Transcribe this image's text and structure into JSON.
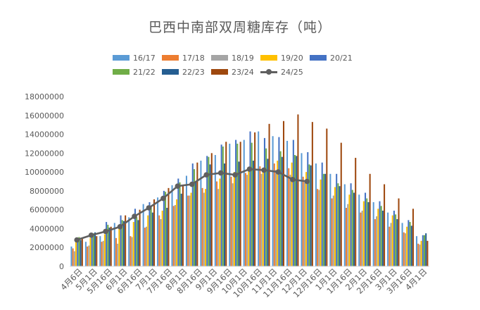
{
  "chart_data": {
    "type": "bar",
    "title": "巴西中南部双周糖库存（吨）",
    "categories": [
      "4月6日",
      "4月16日",
      "5月1日",
      "5月16日",
      "6月1日",
      "6月16日",
      "7月1日",
      "7月16日",
      "8月1日",
      "8月16日",
      "9月1日",
      "9月16日",
      "10月1日",
      "10月16日",
      "11月1日",
      "11月16日",
      "12月1日",
      "12月16日",
      "1月1日",
      "1月16日",
      "2月1日",
      "2月16日",
      "3月1日",
      "3月16日",
      "4月1日"
    ],
    "x_tick_labels": [
      "4月6日",
      "5月1日",
      "5月16日",
      "6月1日",
      "6月16日",
      "7月1日",
      "7月16日",
      "8月1日",
      "8月16日",
      "9月1日",
      "9月16日",
      "10月1日",
      "10月16日",
      "11月1日",
      "11月16日",
      "12月1日",
      "12月16日",
      "1月1日",
      "1月16日",
      "2月1日",
      "2月16日",
      "3月1日",
      "3月16日",
      "4月1日"
    ],
    "ylim": [
      0,
      18000000
    ],
    "yticks": [
      0,
      2000000,
      4000000,
      6000000,
      8000000,
      10000000,
      12000000,
      14000000,
      16000000,
      18000000
    ],
    "ytick_labels": [
      "0",
      "2000000",
      "4000000",
      "6000000",
      "8000000",
      "10000000",
      "12000000",
      "14000000",
      "16000000",
      "18000000"
    ],
    "grid": false,
    "legend_position": "top",
    "series": [
      {
        "name": "16/17",
        "kind": "bar",
        "color": "#5b9bd5",
        "values": [
          2100000,
          2600000,
          3200000,
          4600000,
          5200000,
          6600000,
          7300000,
          8600000,
          9600000,
          11200000,
          11800000,
          13000000,
          13400000,
          14300000,
          13800000,
          13300000,
          12000000,
          10900000,
          9800000,
          8700000,
          7600000,
          6800000,
          5700000,
          4600000,
          3200000
        ]
      },
      {
        "name": "17/18",
        "kind": "bar",
        "color": "#ed7d31",
        "values": [
          1900000,
          2100000,
          2600000,
          3000000,
          3200000,
          4100000,
          5400000,
          6400000,
          7500000,
          8300000,
          9000000,
          9500000,
          9900000,
          10600000,
          10900000,
          10400000,
          9500000,
          8200000,
          7200000,
          6200000,
          5700000,
          5000000,
          4200000,
          3600000,
          2400000
        ]
      },
      {
        "name": "18/19",
        "kind": "bar",
        "color": "#a5a5a5",
        "values": [
          1600000,
          2200000,
          2700000,
          2400000,
          3100000,
          4200000,
          5000000,
          6500000,
          7500000,
          7800000,
          8200000,
          8800000,
          9700000,
          9800000,
          10200000,
          9700000,
          8900000,
          8100000,
          7500000,
          6600000,
          5900000,
          5300000,
          4600000,
          3500000,
          2300000
        ]
      },
      {
        "name": "19/20",
        "kind": "bar",
        "color": "#ffc000",
        "values": [
          2700000,
          3000000,
          3400000,
          4000000,
          4700000,
          5400000,
          5900000,
          7100000,
          7800000,
          8200000,
          9300000,
          10000000,
          10300000,
          10400000,
          11200000,
          11000000,
          10000000,
          9200000,
          8400000,
          7600000,
          6900000,
          6100000,
          5400000,
          4200000,
          2700000
        ]
      },
      {
        "name": "20/21",
        "kind": "bar",
        "color": "#4472c4",
        "values": [
          2900000,
          3400000,
          4700000,
          5400000,
          6100000,
          6800000,
          8000000,
          9300000,
          10900000,
          11700000,
          12900000,
          13400000,
          14300000,
          13600000,
          13700000,
          13400000,
          12100000,
          11000000,
          9800000,
          8800000,
          7800000,
          6900000,
          5900000,
          4900000,
          3300000
        ]
      },
      {
        "name": "21/22",
        "kind": "bar",
        "color": "#70ad47",
        "values": [
          3100000,
          3500000,
          4400000,
          4900000,
          5200000,
          6300000,
          7900000,
          8900000,
          10300000,
          11600000,
          12700000,
          13000000,
          13100000,
          12500000,
          12200000,
          11800000,
          10800000,
          9800000,
          8800000,
          8100000,
          7200000,
          6400000,
          5500000,
          4700000,
          3300000
        ]
      },
      {
        "name": "22/23",
        "kind": "bar",
        "color": "#255e91",
        "values": [
          2800000,
          3600000,
          4100000,
          4800000,
          4900000,
          5700000,
          6200000,
          7700000,
          9000000,
          10800000,
          10900000,
          11100000,
          11200000,
          11400000,
          11600000,
          11700000,
          10700000,
          9800000,
          8500000,
          7800000,
          6800000,
          5900000,
          5000000,
          4300000,
          3500000
        ]
      },
      {
        "name": "23/24",
        "kind": "bar",
        "color": "#9e480e",
        "values": [
          3000000,
          3200000,
          4200000,
          5400000,
          6000000,
          7100000,
          8300000,
          8600000,
          11000000,
          12000000,
          13200000,
          13200000,
          14200000,
          15100000,
          15400000,
          16100000,
          15300000,
          14600000,
          13100000,
          11500000,
          9800000,
          8700000,
          7200000,
          6100000,
          2700000
        ]
      },
      {
        "name": "24/25",
        "kind": "line",
        "color": "#5f5f5f",
        "values": [
          2800000,
          3300000,
          3700000,
          4200000,
          5300000,
          6200000,
          7200000,
          8500000,
          8700000,
          9700000,
          9900000,
          9700000,
          10300000,
          10200000,
          10000000,
          9200000,
          9000000,
          null,
          null,
          null,
          null,
          null,
          null,
          null,
          null
        ]
      }
    ]
  }
}
